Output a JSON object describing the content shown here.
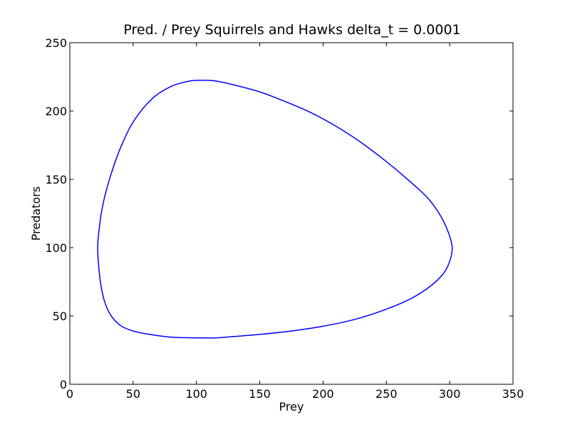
{
  "chart_data": {
    "type": "line",
    "title": "Pred. / Prey Squirrels and Hawks delta_t = 0.0001",
    "xlabel": "Prey",
    "ylabel": "Predators",
    "xlim": [
      0,
      350
    ],
    "ylim": [
      0,
      250
    ],
    "xticks": [
      "0",
      "50",
      "100",
      "150",
      "200",
      "250",
      "300",
      "350"
    ],
    "yticks": [
      "0",
      "50",
      "100",
      "150",
      "200",
      "250"
    ],
    "grid": false,
    "legend": "none",
    "series": [
      {
        "color": "#0000ff",
        "closed": true,
        "x": [
          302,
          299,
          293,
          283,
          268,
          250,
          230,
          210,
          190,
          170,
          150,
          130,
          115,
          106,
          95,
          80,
          65,
          50,
          40,
          33,
          28,
          25,
          23.5,
          22.5,
          22,
          22.5,
          24,
          27,
          32,
          40,
          50,
          60,
          80,
          100,
          115,
          130,
          150,
          175,
          200,
          225,
          250,
          270,
          285,
          295,
          300,
          302
        ],
        "y": [
          100,
          111,
          123,
          136,
          149,
          163,
          177,
          189,
          199,
          207,
          214,
          219,
          222,
          222.5,
          222,
          218,
          209,
          192,
          173,
          155,
          139,
          126,
          116,
          108,
          100,
          90,
          76,
          62,
          51,
          43,
          39,
          37,
          34.5,
          34,
          34,
          35,
          36.5,
          39,
          42.5,
          47.5,
          55,
          63,
          72,
          81,
          90,
          100
        ]
      }
    ]
  }
}
